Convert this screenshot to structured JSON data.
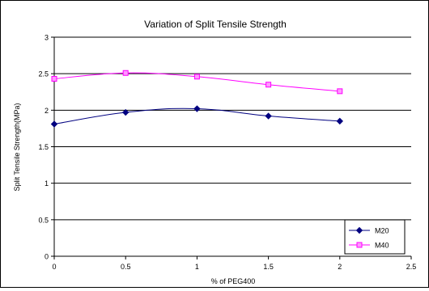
{
  "chart_data": {
    "type": "line",
    "title": "Variation of Split Tensile  Strength",
    "xlabel": "% of PEG400",
    "ylabel": "Split Tensile Strength(MPa)",
    "xlim": [
      0,
      2.5
    ],
    "ylim": [
      0,
      3
    ],
    "x_ticks": [
      "0",
      "0.5",
      "1",
      "1.5",
      "2",
      "2.5"
    ],
    "y_ticks": [
      "0",
      "0.5",
      "1",
      "1.5",
      "2",
      "2.5",
      "3"
    ],
    "grid": "horizontal",
    "legend_position": "bottom-right",
    "series": [
      {
        "name": "M20",
        "color": "#000080",
        "marker": "diamond",
        "x": [
          0,
          0.5,
          1,
          1.5,
          2
        ],
        "y": [
          1.81,
          1.97,
          2.02,
          1.92,
          1.85
        ]
      },
      {
        "name": "M40",
        "color": "#FF00FF",
        "marker": "square",
        "x": [
          0,
          0.5,
          1,
          1.5,
          2
        ],
        "y": [
          2.43,
          2.51,
          2.46,
          2.35,
          2.26
        ]
      }
    ]
  }
}
